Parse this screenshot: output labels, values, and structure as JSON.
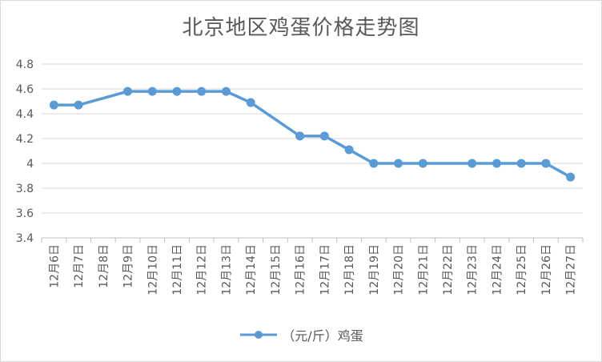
{
  "chart_data": {
    "type": "line",
    "title": "北京地区鸡蛋价格走势图",
    "categories": [
      "12月6日",
      "12月7日",
      "12月8日",
      "12月9日",
      "12月10日",
      "12月11日",
      "12月12日",
      "12月13日",
      "12月14日",
      "12月15日",
      "12月16日",
      "12月17日",
      "12月18日",
      "12月19日",
      "12月20日",
      "12月21日",
      "12月22日",
      "12月23日",
      "12月24日",
      "12月25日",
      "12月26日",
      "12月27日"
    ],
    "series": [
      {
        "name": "（元/斤）鸡蛋",
        "color": "#5b9bd5",
        "values": [
          4.47,
          4.47,
          null,
          4.58,
          4.58,
          4.58,
          4.58,
          4.58,
          4.49,
          null,
          4.22,
          4.22,
          4.11,
          4.0,
          4.0,
          4.0,
          null,
          4.0,
          4.0,
          4.0,
          4.0,
          3.89
        ]
      }
    ],
    "ylim": [
      3.4,
      4.8
    ],
    "yticks": [
      "3.4",
      "3.6",
      "3.8",
      "4",
      "4.2",
      "4.4",
      "4.6",
      "4.8"
    ],
    "grid": true,
    "legend": "bottom"
  }
}
